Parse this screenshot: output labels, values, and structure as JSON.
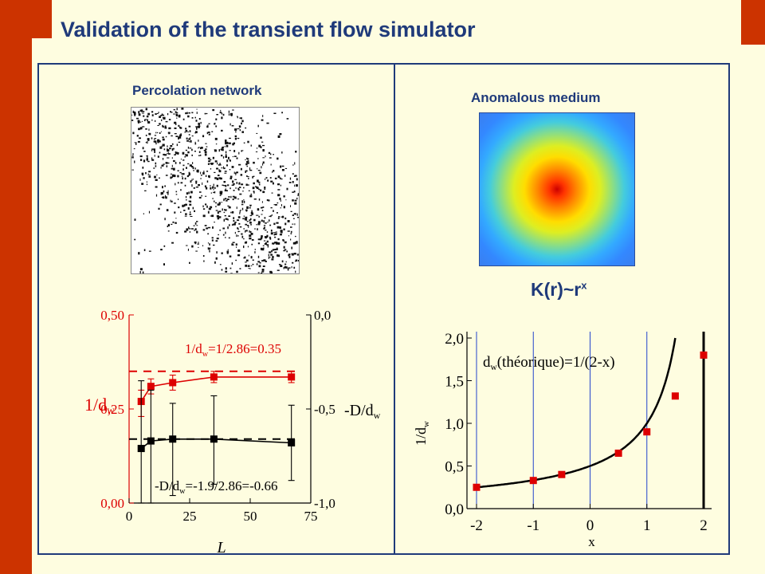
{
  "title": "Validation of the transient flow simulator",
  "left_section": {
    "title": "Percolation network"
  },
  "right_section": {
    "title": "Anomalous medium",
    "formula_base": "K(r)~r",
    "formula_exp": "x"
  },
  "colors": {
    "accent_bar": "#cc3300",
    "title_blue": "#1f3a7a",
    "background": "#fefde0",
    "red": "#dd0000"
  },
  "chart_data": [
    {
      "type": "scatter",
      "x_label": "L",
      "y_left_label": "1/d",
      "y_left_label_sub": "w",
      "y_right_label": "-D/d",
      "y_right_label_sub": "w",
      "x_ticks": [
        "0",
        "25",
        "50",
        "75"
      ],
      "y_left_ticks": [
        "0,00",
        "0,25",
        "0,50"
      ],
      "y_right_ticks": [
        "-1,0",
        "-0,5",
        "0,0"
      ],
      "xlim": [
        0,
        75
      ],
      "ylim_left": [
        0,
        0.5
      ],
      "ylim_right": [
        -1.0,
        0.0
      ],
      "series": [
        {
          "name_text": "1/d",
          "name_sub": "w",
          "name_rest": "=1/2.86=0.35",
          "color": "#dd0000",
          "axis": "left",
          "x": [
            5,
            9,
            18,
            35,
            67
          ],
          "y": [
            0.27,
            0.31,
            0.32,
            0.335,
            0.335
          ],
          "err_low": [
            0.23,
            0.29,
            0.3,
            0.32,
            0.32
          ],
          "err_high": [
            0.3,
            0.33,
            0.34,
            0.35,
            0.35
          ],
          "reference_line": 0.35
        },
        {
          "name_text": "-D/d",
          "name_sub": "w",
          "name_rest": "=-1.9/2.86=-0.66",
          "color": "#000000",
          "axis": "right",
          "x": [
            5,
            9,
            18,
            35,
            67
          ],
          "y": [
            -0.71,
            -0.67,
            -0.66,
            -0.66,
            -0.68
          ],
          "err_low": [
            -1.0,
            -1.0,
            -0.96,
            -0.9,
            -0.88
          ],
          "err_high": [
            -0.35,
            -0.4,
            -0.47,
            -0.43,
            -0.48
          ],
          "reference_line": -0.66
        }
      ]
    },
    {
      "type": "line",
      "x_label": "x",
      "y_label": "1/d",
      "y_label_sub": "w",
      "annotation": {
        "pre": "d",
        "sub": "w",
        "post": "(théorique)=1/(2-x)"
      },
      "x_ticks": [
        "-2",
        "-1",
        "0",
        "1",
        "2"
      ],
      "y_ticks": [
        "0,0",
        "0,5",
        "1,0",
        "1,5",
        "2,0"
      ],
      "xlim": [
        -2,
        2
      ],
      "ylim": [
        0,
        2
      ],
      "vertical_lines": [
        -2,
        -1,
        0,
        1,
        2
      ],
      "theory": "1/(2-x)",
      "points": {
        "color": "#dd0000",
        "x": [
          -2,
          -1,
          -0.5,
          0.5,
          1,
          1.5,
          2
        ],
        "y": [
          0.25,
          0.33,
          0.4,
          0.65,
          0.9,
          1.32,
          1.8
        ]
      }
    }
  ]
}
